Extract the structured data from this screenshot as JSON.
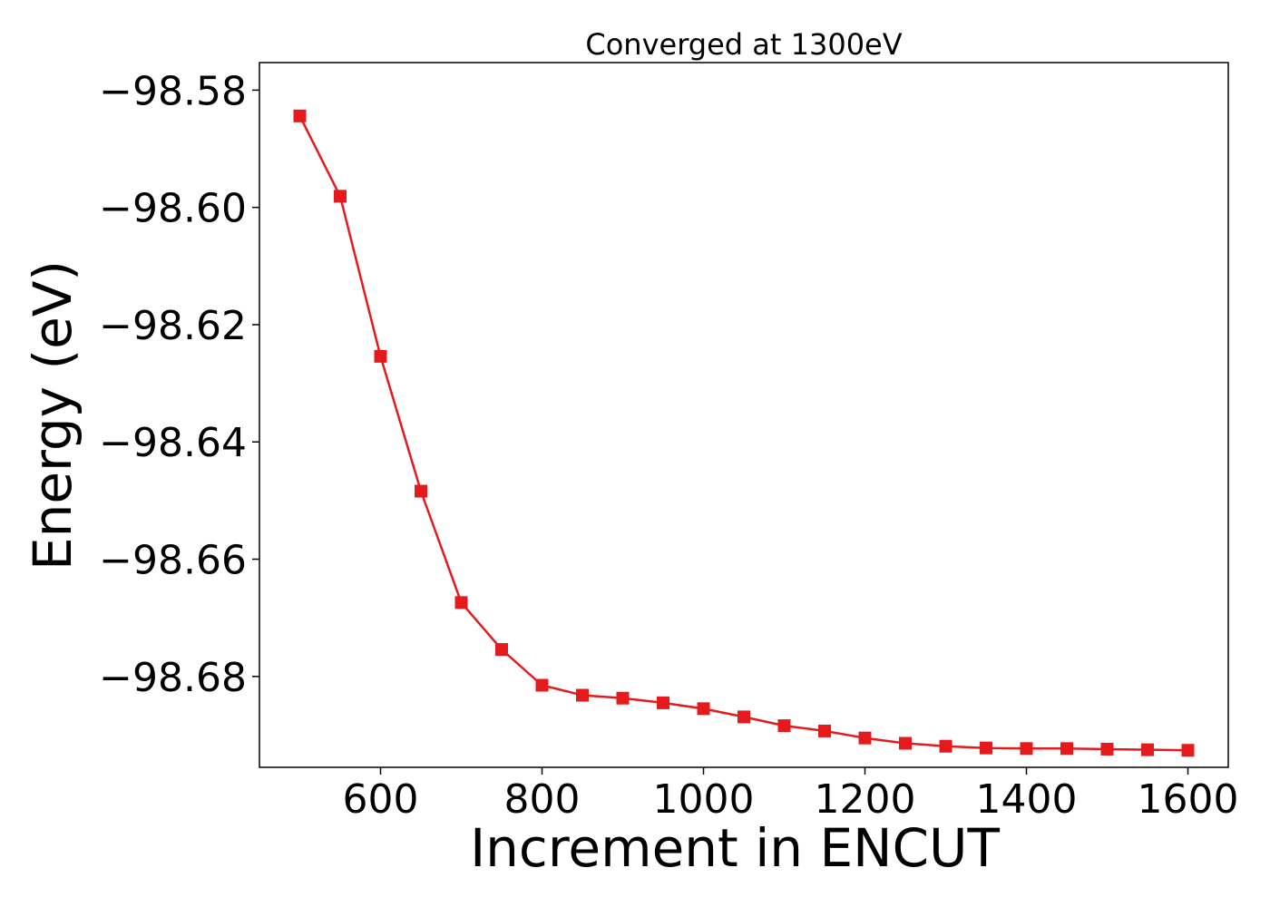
{
  "chart_data": {
    "type": "line",
    "title": "Converged at 1300eV",
    "xlabel": "Increment in ENCUT",
    "ylabel": "Energy (eV)",
    "xlim": [
      450,
      1650
    ],
    "ylim": [
      -98.6955,
      -98.5753
    ],
    "xticks": [
      600,
      800,
      1000,
      1200,
      1400,
      1600
    ],
    "xtick_labels": [
      "600",
      "800",
      "1000",
      "1200",
      "1400",
      "1600"
    ],
    "yticks": [
      -98.58,
      -98.6,
      -98.62,
      -98.64,
      -98.66,
      -98.68
    ],
    "ytick_labels": [
      "−98.58",
      "−98.60",
      "−98.62",
      "−98.64",
      "−98.66",
      "−98.68"
    ],
    "grid": false,
    "series": [
      {
        "color": "#e41a1c",
        "marker": "square",
        "x": [
          500,
          550,
          600,
          650,
          700,
          750,
          800,
          850,
          900,
          950,
          1000,
          1050,
          1100,
          1150,
          1200,
          1250,
          1300,
          1350,
          1400,
          1450,
          1500,
          1550,
          1600
        ],
        "y": [
          -98.5844,
          -98.5981,
          -98.6254,
          -98.6484,
          -98.6674,
          -98.6754,
          -98.6815,
          -98.6832,
          -98.6837,
          -98.6845,
          -98.6855,
          -98.6869,
          -98.6884,
          -98.6893,
          -98.6905,
          -98.6914,
          -98.6919,
          -98.6922,
          -98.6923,
          -98.6923,
          -98.6924,
          -98.6925,
          -98.6926
        ]
      }
    ]
  }
}
